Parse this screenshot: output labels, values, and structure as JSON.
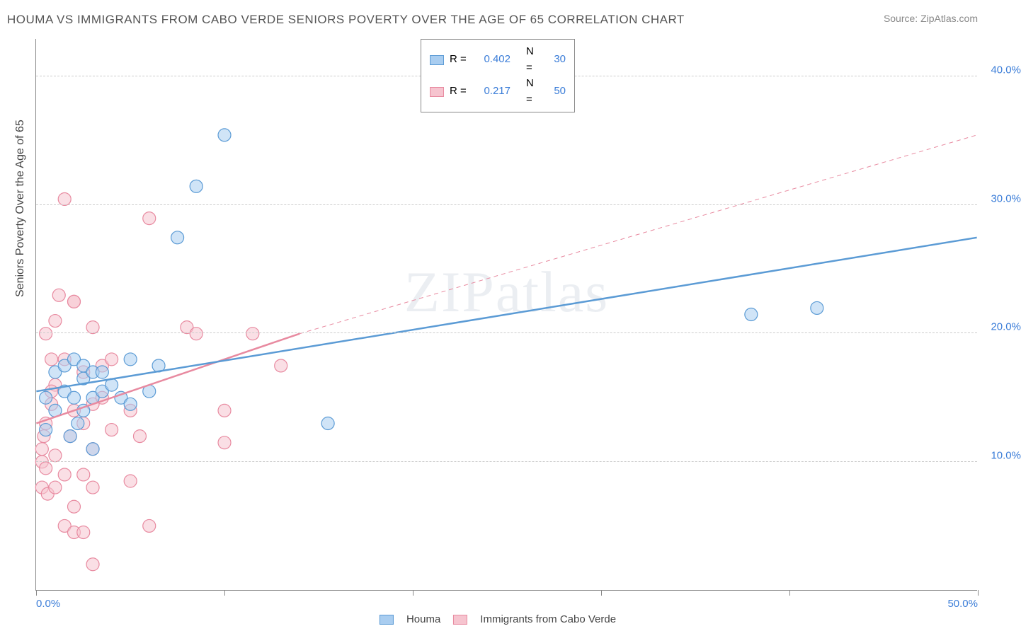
{
  "title": "HOUMA VS IMMIGRANTS FROM CABO VERDE SENIORS POVERTY OVER THE AGE OF 65 CORRELATION CHART",
  "source_prefix": "Source: ",
  "source_name": "ZipAtlas.com",
  "ylabel": "Seniors Poverty Over the Age of 65",
  "watermark": "ZIPatlas",
  "chart": {
    "xlim": [
      0,
      50
    ],
    "ylim": [
      0,
      43
    ],
    "yticks": [
      {
        "v": 10,
        "label": "10.0%"
      },
      {
        "v": 20,
        "label": "20.0%"
      },
      {
        "v": 30,
        "label": "30.0%"
      },
      {
        "v": 40,
        "label": "40.0%"
      }
    ],
    "xticks": [
      {
        "v": 0,
        "label": "0.0%"
      },
      {
        "v": 10,
        "label": ""
      },
      {
        "v": 20,
        "label": ""
      },
      {
        "v": 30,
        "label": ""
      },
      {
        "v": 40,
        "label": ""
      },
      {
        "v": 50,
        "label": "50.0%"
      }
    ],
    "marker_radius": 9,
    "grid_color": "#cccccc",
    "axis_color": "#888888",
    "background": "#ffffff"
  },
  "series": {
    "houma": {
      "label": "Houma",
      "color_fill": "#a9cdf0",
      "color_stroke": "#5b9bd5",
      "r_label": "R =",
      "r_value": "0.402",
      "n_label": "N =",
      "n_value": "30",
      "points": [
        {
          "x": 0.5,
          "y": 12.5
        },
        {
          "x": 0.5,
          "y": 15
        },
        {
          "x": 1,
          "y": 17
        },
        {
          "x": 1,
          "y": 14
        },
        {
          "x": 1.5,
          "y": 15.5
        },
        {
          "x": 1.5,
          "y": 17.5
        },
        {
          "x": 1.8,
          "y": 12
        },
        {
          "x": 2,
          "y": 18
        },
        {
          "x": 2,
          "y": 15
        },
        {
          "x": 2.5,
          "y": 16.5
        },
        {
          "x": 2.5,
          "y": 14
        },
        {
          "x": 2.5,
          "y": 17.5
        },
        {
          "x": 3,
          "y": 17
        },
        {
          "x": 3,
          "y": 15
        },
        {
          "x": 3,
          "y": 11
        },
        {
          "x": 3.5,
          "y": 15.5
        },
        {
          "x": 3.5,
          "y": 17
        },
        {
          "x": 4,
          "y": 16
        },
        {
          "x": 4.5,
          "y": 15
        },
        {
          "x": 5,
          "y": 18
        },
        {
          "x": 5,
          "y": 14.5
        },
        {
          "x": 6,
          "y": 15.5
        },
        {
          "x": 6.5,
          "y": 17.5
        },
        {
          "x": 7.5,
          "y": 27.5
        },
        {
          "x": 8.5,
          "y": 31.5
        },
        {
          "x": 10,
          "y": 35.5
        },
        {
          "x": 15.5,
          "y": 13
        },
        {
          "x": 38,
          "y": 21.5
        },
        {
          "x": 41.5,
          "y": 22
        },
        {
          "x": 2.2,
          "y": 13
        }
      ],
      "trend": {
        "x1": 0,
        "y1": 15.5,
        "x2": 50,
        "y2": 27.5,
        "width": 2.5,
        "dash": ""
      }
    },
    "cabo": {
      "label": "Immigrants from Cabo Verde",
      "color_fill": "#f6c4cf",
      "color_stroke": "#e88aa0",
      "r_label": "R =",
      "r_value": "0.217",
      "n_label": "N =",
      "n_value": "50",
      "points": [
        {
          "x": 0.3,
          "y": 10
        },
        {
          "x": 0.3,
          "y": 11
        },
        {
          "x": 0.3,
          "y": 8
        },
        {
          "x": 0.4,
          "y": 12
        },
        {
          "x": 0.5,
          "y": 9.5
        },
        {
          "x": 0.5,
          "y": 13
        },
        {
          "x": 0.5,
          "y": 20
        },
        {
          "x": 0.6,
          "y": 7.5
        },
        {
          "x": 0.8,
          "y": 14.5
        },
        {
          "x": 0.8,
          "y": 18
        },
        {
          "x": 1,
          "y": 8
        },
        {
          "x": 1,
          "y": 10.5
        },
        {
          "x": 1,
          "y": 16
        },
        {
          "x": 1,
          "y": 21
        },
        {
          "x": 1.2,
          "y": 23
        },
        {
          "x": 1.5,
          "y": 5
        },
        {
          "x": 1.5,
          "y": 9
        },
        {
          "x": 1.5,
          "y": 30.5
        },
        {
          "x": 1.5,
          "y": 18
        },
        {
          "x": 1.8,
          "y": 12
        },
        {
          "x": 2,
          "y": 4.5
        },
        {
          "x": 2,
          "y": 22.5
        },
        {
          "x": 2,
          "y": 22.5
        },
        {
          "x": 2,
          "y": 14
        },
        {
          "x": 2.5,
          "y": 9
        },
        {
          "x": 2.5,
          "y": 4.5
        },
        {
          "x": 2.5,
          "y": 17
        },
        {
          "x": 2.5,
          "y": 13
        },
        {
          "x": 3,
          "y": 11
        },
        {
          "x": 3,
          "y": 20.5
        },
        {
          "x": 3,
          "y": 14.5
        },
        {
          "x": 3,
          "y": 2
        },
        {
          "x": 3,
          "y": 8
        },
        {
          "x": 3.5,
          "y": 15
        },
        {
          "x": 3.5,
          "y": 17.5
        },
        {
          "x": 4,
          "y": 12.5
        },
        {
          "x": 4,
          "y": 18
        },
        {
          "x": 5,
          "y": 8.5
        },
        {
          "x": 5,
          "y": 14
        },
        {
          "x": 5.5,
          "y": 12
        },
        {
          "x": 6,
          "y": 5
        },
        {
          "x": 6,
          "y": 29
        },
        {
          "x": 8,
          "y": 20.5
        },
        {
          "x": 8.5,
          "y": 20
        },
        {
          "x": 10,
          "y": 11.5
        },
        {
          "x": 10,
          "y": 14
        },
        {
          "x": 11.5,
          "y": 20
        },
        {
          "x": 13,
          "y": 17.5
        },
        {
          "x": 2,
          "y": 6.5
        },
        {
          "x": 0.8,
          "y": 15.5
        }
      ],
      "trend_solid": {
        "x1": 0,
        "y1": 13,
        "x2": 14,
        "y2": 20,
        "width": 2.5,
        "dash": ""
      },
      "trend_dashed": {
        "x1": 14,
        "y1": 20,
        "x2": 50,
        "y2": 35.5,
        "width": 1,
        "dash": "6 5"
      }
    }
  }
}
